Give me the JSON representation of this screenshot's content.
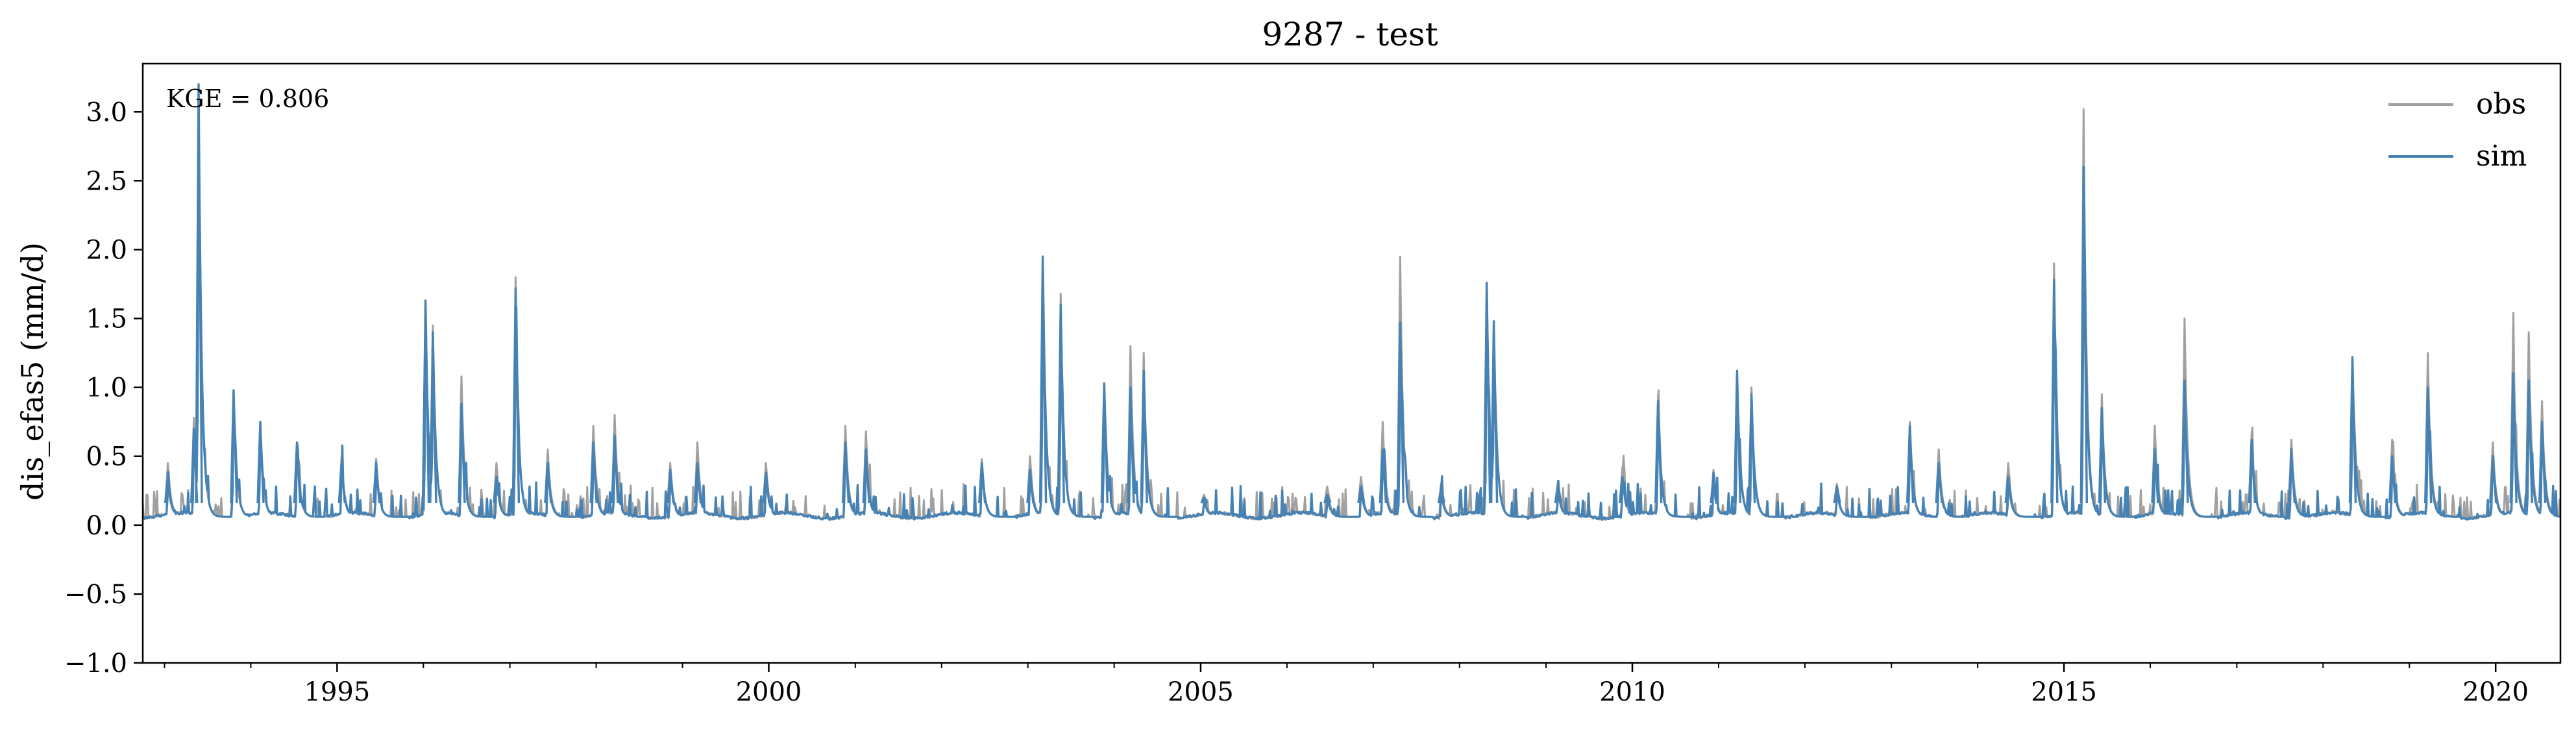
{
  "chart_data": {
    "type": "line",
    "title": "9287 - test",
    "xlabel": "",
    "ylabel": "dis_efas5 (mm/d)",
    "xlim": [
      "1992-10-01",
      "2020-10-01"
    ],
    "ylim": [
      -1.0,
      3.35
    ],
    "yticks": [
      -1.0,
      -0.5,
      0.0,
      0.5,
      1.0,
      1.5,
      2.0,
      2.5,
      3.0
    ],
    "ytick_labels": [
      "−1.0",
      "−0.5",
      "0.0",
      "0.5",
      "1.0",
      "1.5",
      "2.0",
      "2.5",
      "3.0"
    ],
    "xticks": [
      "1995-01-01",
      "2000-01-01",
      "2005-01-01",
      "2010-01-01",
      "2015-01-01",
      "2020-01-01"
    ],
    "xtick_labels": [
      "1995",
      "2000",
      "2005",
      "2010",
      "2015",
      "2020"
    ],
    "grid": false,
    "legend_position": "top-right",
    "annotation": "KGE = 0.806",
    "baseline": 0.06,
    "series": [
      {
        "name": "obs",
        "color": "#a0a0a0",
        "peaks": [
          [
            "1993-01-15",
            0.45
          ],
          [
            "1993-05-05",
            0.78
          ],
          [
            "1993-05-25",
            3.15
          ],
          [
            "1993-10-20",
            0.95
          ],
          [
            "1994-02-10",
            0.75
          ],
          [
            "1994-07-15",
            0.6
          ],
          [
            "1995-01-20",
            0.5
          ],
          [
            "1995-06-15",
            0.48
          ],
          [
            "1996-01-10",
            1.62
          ],
          [
            "1996-02-10",
            1.45
          ],
          [
            "1996-06-10",
            1.08
          ],
          [
            "1996-11-05",
            0.45
          ],
          [
            "1997-01-25",
            1.8
          ],
          [
            "1997-06-10",
            0.55
          ],
          [
            "1997-12-20",
            0.72
          ],
          [
            "1998-03-20",
            0.8
          ],
          [
            "1998-11-10",
            0.45
          ],
          [
            "1999-03-05",
            0.6
          ],
          [
            "1999-12-20",
            0.45
          ],
          [
            "2000-11-20",
            0.72
          ],
          [
            "2001-02-15",
            0.68
          ],
          [
            "2002-06-20",
            0.48
          ],
          [
            "2003-01-10",
            0.5
          ],
          [
            "2003-03-05",
            1.9
          ],
          [
            "2003-05-20",
            1.68
          ],
          [
            "2003-11-20",
            1.02
          ],
          [
            "2004-03-10",
            1.3
          ],
          [
            "2004-05-05",
            1.25
          ],
          [
            "2005-01-15",
            0.22
          ],
          [
            "2006-06-20",
            0.28
          ],
          [
            "2006-11-10",
            0.35
          ],
          [
            "2007-02-10",
            0.75
          ],
          [
            "2007-04-25",
            1.95
          ],
          [
            "2007-10-15",
            0.3
          ],
          [
            "2008-04-25",
            1.75
          ],
          [
            "2008-05-25",
            1.45
          ],
          [
            "2009-02-20",
            0.32
          ],
          [
            "2009-11-20",
            0.42
          ],
          [
            "2010-04-20",
            0.95
          ],
          [
            "2010-12-10",
            0.4
          ],
          [
            "2011-03-20",
            1.1
          ],
          [
            "2011-05-20",
            1.0
          ],
          [
            "2012-05-15",
            0.3
          ],
          [
            "2013-03-20",
            0.75
          ],
          [
            "2013-07-20",
            0.55
          ],
          [
            "2014-05-10",
            0.45
          ],
          [
            "2014-11-20",
            1.9
          ],
          [
            "2015-03-25",
            3.02
          ],
          [
            "2015-06-10",
            0.95
          ],
          [
            "2016-01-20",
            0.72
          ],
          [
            "2016-05-25",
            1.5
          ],
          [
            "2017-03-05",
            0.68
          ],
          [
            "2017-08-20",
            0.62
          ],
          [
            "2018-05-05",
            1.22
          ],
          [
            "2018-10-20",
            0.62
          ],
          [
            "2019-03-20",
            1.25
          ],
          [
            "2019-12-20",
            0.6
          ],
          [
            "2020-03-15",
            1.45
          ],
          [
            "2020-05-20",
            1.4
          ],
          [
            "2020-07-15",
            0.9
          ]
        ]
      },
      {
        "name": "sim",
        "color": "#4682b4",
        "peaks": [
          [
            "1993-01-15",
            0.35
          ],
          [
            "1993-05-05",
            0.7
          ],
          [
            "1993-05-25",
            3.2
          ],
          [
            "1993-10-20",
            0.98
          ],
          [
            "1994-02-10",
            0.75
          ],
          [
            "1994-07-15",
            0.6
          ],
          [
            "1995-01-20",
            0.45
          ],
          [
            "1995-06-15",
            0.45
          ],
          [
            "1996-01-10",
            1.63
          ],
          [
            "1996-02-10",
            1.4
          ],
          [
            "1996-06-10",
            0.88
          ],
          [
            "1996-11-05",
            0.35
          ],
          [
            "1997-01-25",
            1.72
          ],
          [
            "1997-06-10",
            0.45
          ],
          [
            "1997-12-20",
            0.6
          ],
          [
            "1998-03-20",
            0.65
          ],
          [
            "1998-11-10",
            0.4
          ],
          [
            "1999-03-05",
            0.45
          ],
          [
            "1999-12-20",
            0.38
          ],
          [
            "2000-11-20",
            0.6
          ],
          [
            "2001-02-15",
            0.55
          ],
          [
            "2002-06-20",
            0.45
          ],
          [
            "2003-01-10",
            0.4
          ],
          [
            "2003-03-05",
            1.95
          ],
          [
            "2003-05-20",
            1.6
          ],
          [
            "2003-11-20",
            1.03
          ],
          [
            "2004-03-10",
            1.0
          ],
          [
            "2004-05-05",
            1.12
          ],
          [
            "2005-01-15",
            0.2
          ],
          [
            "2006-06-20",
            0.22
          ],
          [
            "2006-11-10",
            0.28
          ],
          [
            "2007-02-10",
            0.55
          ],
          [
            "2007-04-25",
            1.47
          ],
          [
            "2007-10-15",
            0.25
          ],
          [
            "2008-04-25",
            1.76
          ],
          [
            "2008-05-25",
            1.48
          ],
          [
            "2009-02-20",
            0.28
          ],
          [
            "2009-11-20",
            0.35
          ],
          [
            "2010-04-20",
            0.9
          ],
          [
            "2010-12-10",
            0.32
          ],
          [
            "2011-03-20",
            1.12
          ],
          [
            "2011-05-20",
            0.95
          ],
          [
            "2012-05-15",
            0.28
          ],
          [
            "2013-03-20",
            0.72
          ],
          [
            "2013-07-20",
            0.45
          ],
          [
            "2014-05-10",
            0.35
          ],
          [
            "2014-11-20",
            1.78
          ],
          [
            "2015-03-25",
            2.6
          ],
          [
            "2015-06-10",
            0.85
          ],
          [
            "2016-01-20",
            0.55
          ],
          [
            "2016-05-25",
            1.05
          ],
          [
            "2017-03-05",
            0.62
          ],
          [
            "2017-08-20",
            0.5
          ],
          [
            "2018-05-05",
            1.22
          ],
          [
            "2018-10-20",
            0.5
          ],
          [
            "2019-03-20",
            1.0
          ],
          [
            "2019-12-20",
            0.5
          ],
          [
            "2020-03-15",
            1.1
          ],
          [
            "2020-05-20",
            1.05
          ],
          [
            "2020-07-15",
            0.75
          ]
        ]
      }
    ]
  }
}
